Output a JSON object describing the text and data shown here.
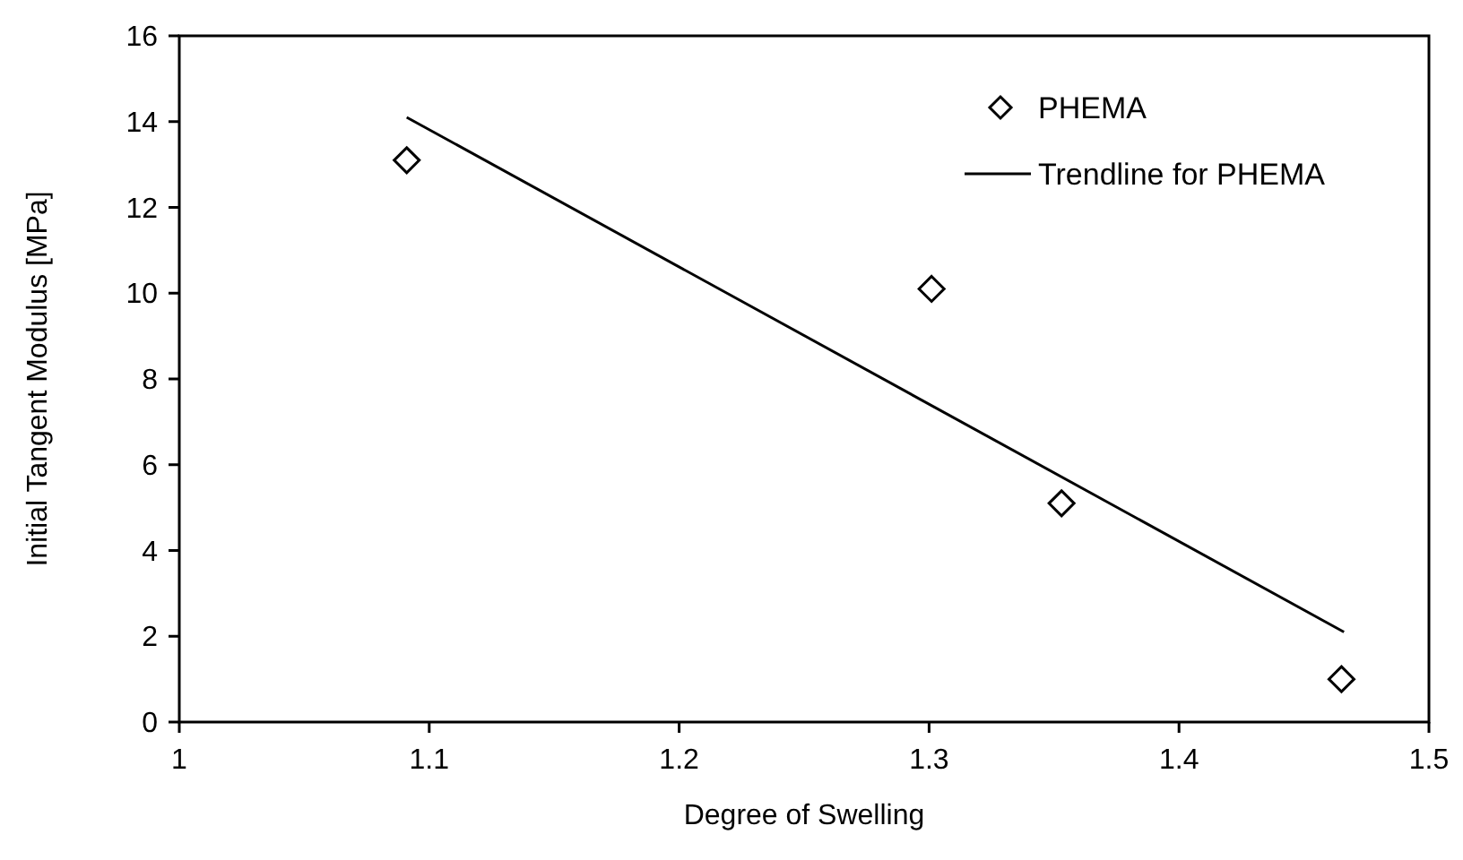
{
  "chart_data": {
    "type": "scatter",
    "xlabel": "Degree of Swelling",
    "ylabel": "Initial Tangent Modulus [MPa]",
    "xlim": [
      1,
      1.5
    ],
    "xticks": [
      1,
      1.1,
      1.2,
      1.3,
      1.4,
      1.5
    ],
    "ylim": [
      0,
      16
    ],
    "yticks": [
      0,
      2,
      4,
      6,
      8,
      10,
      12,
      14,
      16
    ],
    "grid": false,
    "legend": "top right",
    "marker": "diamond",
    "series": [
      {
        "name": "PHEMA",
        "color": "#000000",
        "x": [
          1.091,
          1.301,
          1.353,
          1.465
        ],
        "values": [
          13.1,
          10.1,
          5.1,
          1.0
        ]
      },
      {
        "name": "Trendline for PHEMA",
        "type": "line",
        "color": "#000000",
        "line_style": "solid",
        "marker": "none",
        "x": [
          1.091,
          1.466
        ],
        "values": [
          14.1,
          2.1
        ]
      }
    ]
  }
}
